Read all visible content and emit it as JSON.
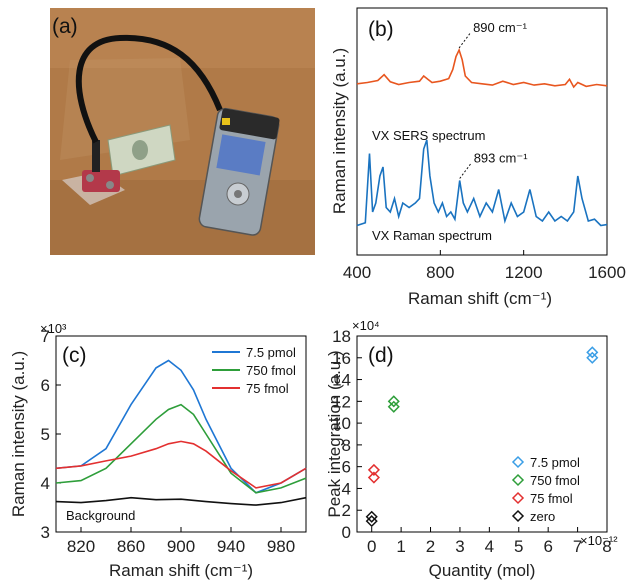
{
  "panel_a": {
    "label": "(a)",
    "photo": "handheld Raman spectrometer with fiber probe over a dollar bill"
  },
  "chart_data": [
    {
      "panel": "(b)",
      "type": "line",
      "xlabel": "Raman shift (cm⁻¹)",
      "ylabel": "Raman intensity (a.u.)",
      "xlim": [
        400,
        1600
      ],
      "xticks": [
        400,
        800,
        1200,
        1600
      ],
      "yticks_visible": false,
      "series": [
        {
          "name": "VX SERS spectrum",
          "color": "#e8561f",
          "peak_annotation": "890 cm⁻¹",
          "peak_x": 890,
          "x": [
            400,
            450,
            500,
            530,
            560,
            600,
            650,
            700,
            720,
            740,
            760,
            800,
            840,
            860,
            875,
            890,
            905,
            920,
            950,
            1000,
            1050,
            1100,
            1150,
            1200,
            1250,
            1300,
            1350,
            1400,
            1420,
            1440,
            1460,
            1500,
            1550,
            1600
          ],
          "y": [
            0.48,
            0.5,
            0.53,
            0.62,
            0.51,
            0.47,
            0.5,
            0.52,
            0.6,
            0.55,
            0.5,
            0.52,
            0.56,
            0.7,
            0.9,
            1.0,
            0.85,
            0.6,
            0.5,
            0.48,
            0.46,
            0.52,
            0.47,
            0.5,
            0.46,
            0.48,
            0.45,
            0.47,
            0.55,
            0.43,
            0.5,
            0.44,
            0.47,
            0.45
          ]
        },
        {
          "name": "VX Raman spectrum",
          "color": "#1a73c0",
          "peak_annotation": "893 cm⁻¹",
          "peak_x": 893,
          "x": [
            400,
            440,
            460,
            475,
            490,
            510,
            525,
            540,
            560,
            580,
            600,
            620,
            650,
            680,
            700,
            720,
            735,
            750,
            770,
            790,
            810,
            830,
            850,
            870,
            893,
            910,
            930,
            960,
            990,
            1020,
            1050,
            1080,
            1110,
            1140,
            1170,
            1200,
            1230,
            1260,
            1290,
            1320,
            1350,
            1380,
            1410,
            1440,
            1460,
            1480,
            1510,
            1540,
            1570,
            1600
          ],
          "y": [
            0.05,
            0.08,
            0.85,
            0.2,
            0.3,
            0.6,
            0.7,
            0.25,
            0.2,
            0.35,
            0.15,
            0.3,
            0.25,
            0.3,
            0.35,
            0.9,
            1.0,
            0.6,
            0.3,
            0.2,
            0.3,
            0.15,
            0.2,
            0.12,
            0.55,
            0.3,
            0.2,
            0.35,
            0.15,
            0.3,
            0.2,
            0.45,
            0.1,
            0.3,
            0.15,
            0.2,
            0.45,
            0.15,
            0.1,
            0.2,
            0.1,
            0.15,
            0.1,
            0.2,
            0.6,
            0.35,
            0.1,
            0.12,
            0.05,
            0.06
          ]
        }
      ]
    },
    {
      "panel": "(c)",
      "type": "line",
      "xlabel": "Raman shift (cm⁻¹)",
      "ylabel": "Raman intensity (a.u.)",
      "y_multiplier": "×10³",
      "xlim": [
        800,
        1000
      ],
      "ylim": [
        3,
        7
      ],
      "xticks": [
        820,
        860,
        900,
        940,
        980
      ],
      "yticks": [
        3,
        4,
        5,
        6,
        7
      ],
      "legend_position": "top-right",
      "series": [
        {
          "name": "7.5 pmol",
          "color": "#1f77d4",
          "x": [
            800,
            820,
            840,
            860,
            880,
            890,
            900,
            910,
            920,
            940,
            960,
            980,
            1000
          ],
          "y": [
            4.3,
            4.35,
            4.7,
            5.6,
            6.35,
            6.5,
            6.3,
            5.9,
            5.3,
            4.3,
            3.8,
            4.0,
            4.3
          ]
        },
        {
          "name": "750 fmol",
          "color": "#2e9e3a",
          "x": [
            800,
            820,
            840,
            860,
            880,
            890,
            900,
            910,
            920,
            940,
            960,
            980,
            1000
          ],
          "y": [
            4.0,
            4.05,
            4.3,
            4.8,
            5.3,
            5.5,
            5.6,
            5.4,
            5.0,
            4.2,
            3.8,
            3.9,
            4.1
          ]
        },
        {
          "name": "75 fmol",
          "color": "#e33030",
          "x": [
            800,
            820,
            840,
            860,
            880,
            890,
            900,
            910,
            920,
            940,
            960,
            980,
            1000
          ],
          "y": [
            4.3,
            4.35,
            4.45,
            4.55,
            4.7,
            4.8,
            4.85,
            4.8,
            4.65,
            4.25,
            3.9,
            4.0,
            4.3
          ]
        },
        {
          "name": "Background",
          "color": "#111111",
          "x": [
            800,
            820,
            840,
            860,
            880,
            900,
            920,
            940,
            960,
            980,
            1000
          ],
          "y": [
            3.62,
            3.6,
            3.64,
            3.7,
            3.66,
            3.67,
            3.62,
            3.58,
            3.55,
            3.6,
            3.7
          ]
        }
      ],
      "annotation": "Background"
    },
    {
      "panel": "(d)",
      "type": "scatter",
      "xlabel": "Quantity (mol)",
      "x_multiplier": "×10⁻¹²",
      "ylabel": "Peak integration (a.u.)",
      "y_multiplier": "×10⁴",
      "xlim": [
        -0.5,
        8
      ],
      "ylim": [
        0,
        18
      ],
      "xticks": [
        0,
        1,
        2,
        3,
        4,
        5,
        6,
        7,
        8
      ],
      "yticks": [
        0,
        2,
        4,
        6,
        8,
        10,
        12,
        14,
        16,
        18
      ],
      "legend_position": "bottom-right",
      "series": [
        {
          "name": "7.5 pmol",
          "color": "#3a9ee6",
          "x": [
            7.5,
            7.5
          ],
          "y": [
            16.0,
            16.5
          ]
        },
        {
          "name": "750 fmol",
          "color": "#2e9e3a",
          "x": [
            0.75,
            0.75
          ],
          "y": [
            11.5,
            12.0
          ]
        },
        {
          "name": "75 fmol",
          "color": "#e33030",
          "x": [
            0.075,
            0.075
          ],
          "y": [
            5.0,
            5.7
          ]
        },
        {
          "name": "zero",
          "color": "#111111",
          "x": [
            0,
            0
          ],
          "y": [
            1.0,
            1.4
          ]
        }
      ]
    }
  ]
}
